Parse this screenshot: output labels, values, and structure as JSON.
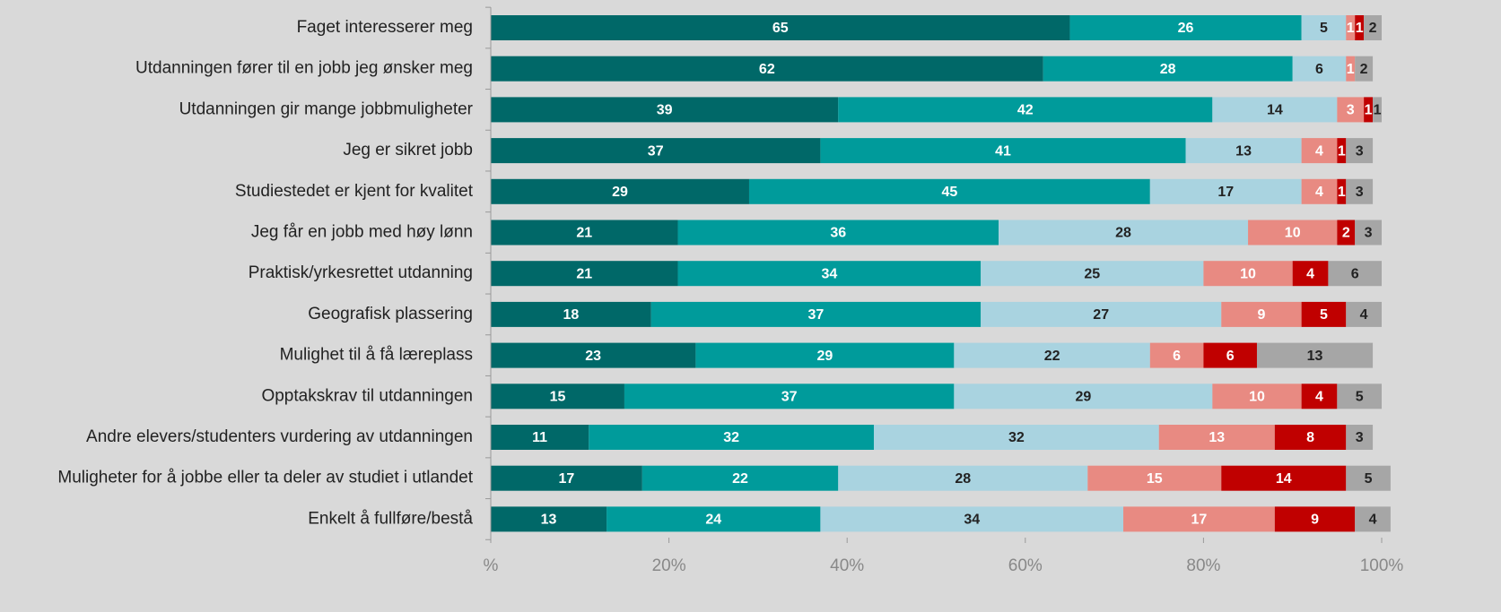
{
  "chart_data": {
    "type": "stacked_barh",
    "categories": [
      "Faget interesserer meg",
      "Utdanningen fører til en jobb jeg ønsker meg",
      "Utdanningen gir mange jobbmuligheter",
      "Jeg er sikret jobb",
      "Studiestedet er kjent for kvalitet",
      "Jeg får en jobb med høy lønn",
      "Praktisk/yrkesrettet utdanning",
      "Geografisk plassering",
      "Mulighet til å få læreplass",
      "Opptakskrav til utdanningen",
      "Andre elevers/studenters vurdering av utdanningen",
      "Muligheter for å jobbe eller ta deler av studiet i utlandet",
      "Enkelt å fullføre/bestå"
    ],
    "series": [
      {
        "color": "#006868",
        "label_color": "#ffffff",
        "values": [
          65,
          62,
          39,
          37,
          29,
          21,
          21,
          18,
          23,
          15,
          11,
          17,
          13
        ]
      },
      {
        "color": "#009b9b",
        "label_color": "#ffffff",
        "values": [
          26,
          28,
          42,
          41,
          45,
          36,
          34,
          37,
          29,
          37,
          32,
          22,
          24
        ]
      },
      {
        "color": "#a9d3e0",
        "label_color": "#222222",
        "values": [
          5,
          6,
          14,
          13,
          17,
          28,
          25,
          27,
          22,
          29,
          32,
          28,
          34
        ]
      },
      {
        "color": "#e88a82",
        "label_color": "#ffffff",
        "values": [
          1,
          1,
          3,
          4,
          4,
          10,
          10,
          9,
          6,
          10,
          13,
          15,
          17
        ]
      },
      {
        "color": "#c00000",
        "label_color": "#ffffff",
        "values": [
          1,
          null,
          1,
          1,
          1,
          2,
          4,
          5,
          6,
          4,
          8,
          14,
          9
        ]
      },
      {
        "color": "#a6a6a6",
        "label_color": "#222222",
        "values": [
          2,
          2,
          1,
          3,
          3,
          3,
          6,
          4,
          13,
          5,
          3,
          5,
          4
        ]
      }
    ],
    "xlim": [
      0,
      100
    ],
    "xticks": [
      {
        "value": 0,
        "label": "%"
      },
      {
        "value": 20,
        "label": "20%"
      },
      {
        "value": 40,
        "label": "40%"
      },
      {
        "value": 60,
        "label": "60%"
      },
      {
        "value": 80,
        "label": "80%"
      },
      {
        "value": 100,
        "label": "100%"
      }
    ]
  }
}
